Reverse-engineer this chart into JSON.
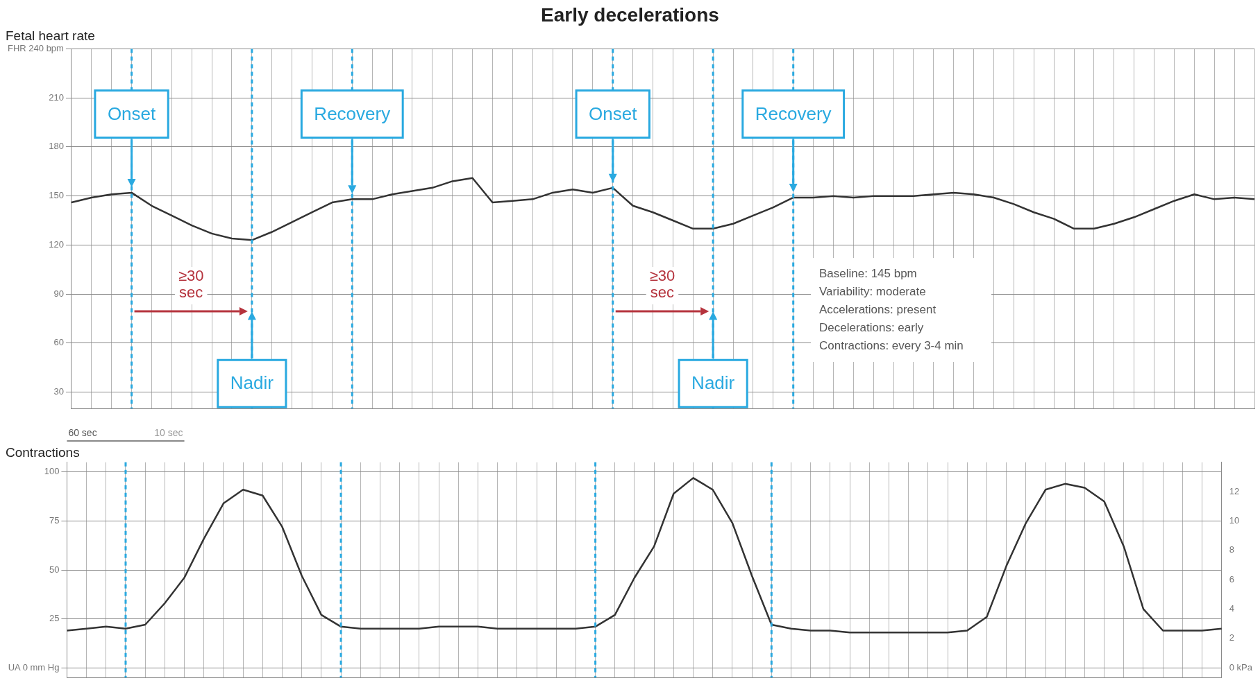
{
  "chart_data": [
    {
      "type": "line",
      "title": "Early decelerations",
      "subtitle": "Fetal heart rate",
      "categories": [
        null,
        null,
        null,
        null,
        null,
        null,
        null,
        null,
        null,
        null,
        null,
        null,
        null,
        null,
        null,
        null,
        null,
        null,
        null,
        null,
        null,
        null,
        null,
        null,
        null,
        null,
        null,
        null,
        null,
        null,
        null,
        null,
        null,
        null,
        null,
        null,
        null,
        null,
        null,
        null,
        null,
        null,
        null,
        null,
        null,
        null,
        null,
        null,
        null,
        null,
        null,
        null,
        null,
        null,
        null,
        null,
        null,
        null,
        null,
        null
      ],
      "series": [
        {
          "color": "#333333",
          "values": [
            146,
            149,
            151,
            152,
            144,
            138,
            132,
            127,
            124,
            123,
            128,
            134,
            140,
            146,
            148,
            148,
            151,
            153,
            155,
            159,
            161,
            146,
            147,
            148,
            152,
            154,
            152,
            155,
            144,
            140,
            135,
            130,
            130,
            133,
            138,
            143,
            149,
            149,
            150,
            149,
            150,
            150,
            150,
            151,
            152,
            151,
            149,
            145,
            140,
            136,
            130,
            130,
            133,
            137,
            142,
            147,
            151,
            148,
            149,
            148
          ]
        }
      ],
      "ylim": [
        20,
        240
      ],
      "yticks": [
        30,
        60,
        90,
        120,
        150,
        180,
        210,
        {
          "value": 240,
          "label": "FHR 240 bpm"
        }
      ],
      "tick_labels": "y",
      "grid": true,
      "marker": "none",
      "line_style": "solid",
      "annotations": [
        "Onset",
        "Nadir",
        "Recovery",
        "Onset",
        "Nadir",
        "Recovery",
        "≥30 sec",
        "≥30 sec",
        "Baseline: 145 bpm",
        "Variability: moderate",
        "Accelerations: present",
        "Decelerations: early",
        "Contractions: every 3-4 min"
      ]
    },
    {
      "type": "line",
      "title": "Contractions",
      "categories": [
        null,
        null,
        null,
        null,
        null,
        null,
        null,
        null,
        null,
        null,
        null,
        null,
        null,
        null,
        null,
        null,
        null,
        null,
        null,
        null,
        null,
        null,
        null,
        null,
        null,
        null,
        null,
        null,
        null,
        null,
        null,
        null,
        null,
        null,
        null,
        null,
        null,
        null,
        null,
        null,
        null,
        null,
        null,
        null,
        null,
        null,
        null,
        null,
        null,
        null,
        null,
        null,
        null,
        null,
        null,
        null,
        null,
        null,
        null,
        null
      ],
      "series": [
        {
          "color": "#333333",
          "values": [
            19,
            20,
            21,
            20,
            22,
            33,
            46,
            66,
            84,
            91,
            88,
            72,
            47,
            27,
            21,
            20,
            20,
            20,
            20,
            21,
            21,
            21,
            20,
            20,
            20,
            20,
            20,
            21,
            27,
            46,
            62,
            89,
            97,
            91,
            74,
            47,
            22,
            20,
            19,
            19,
            18,
            18,
            18,
            18,
            18,
            18,
            19,
            26,
            52,
            74,
            91,
            94,
            92,
            85,
            62,
            30,
            19,
            19,
            19,
            20
          ]
        }
      ],
      "ylim": [
        -5,
        105
      ],
      "yticks": [
        {
          "value": 0,
          "label": "UA 0 mm Hg"
        },
        25,
        50,
        75,
        100
      ],
      "y2lim": [
        -0.67,
        14
      ],
      "y2ticks": [
        {
          "value": 0,
          "label": "0 kPa"
        },
        2,
        4,
        6,
        8,
        10,
        12
      ],
      "tick_labels": "y",
      "grid": true,
      "marker": "none",
      "line_style": "solid",
      "annotations": [
        "60 sec",
        "10 sec"
      ]
    }
  ]
}
